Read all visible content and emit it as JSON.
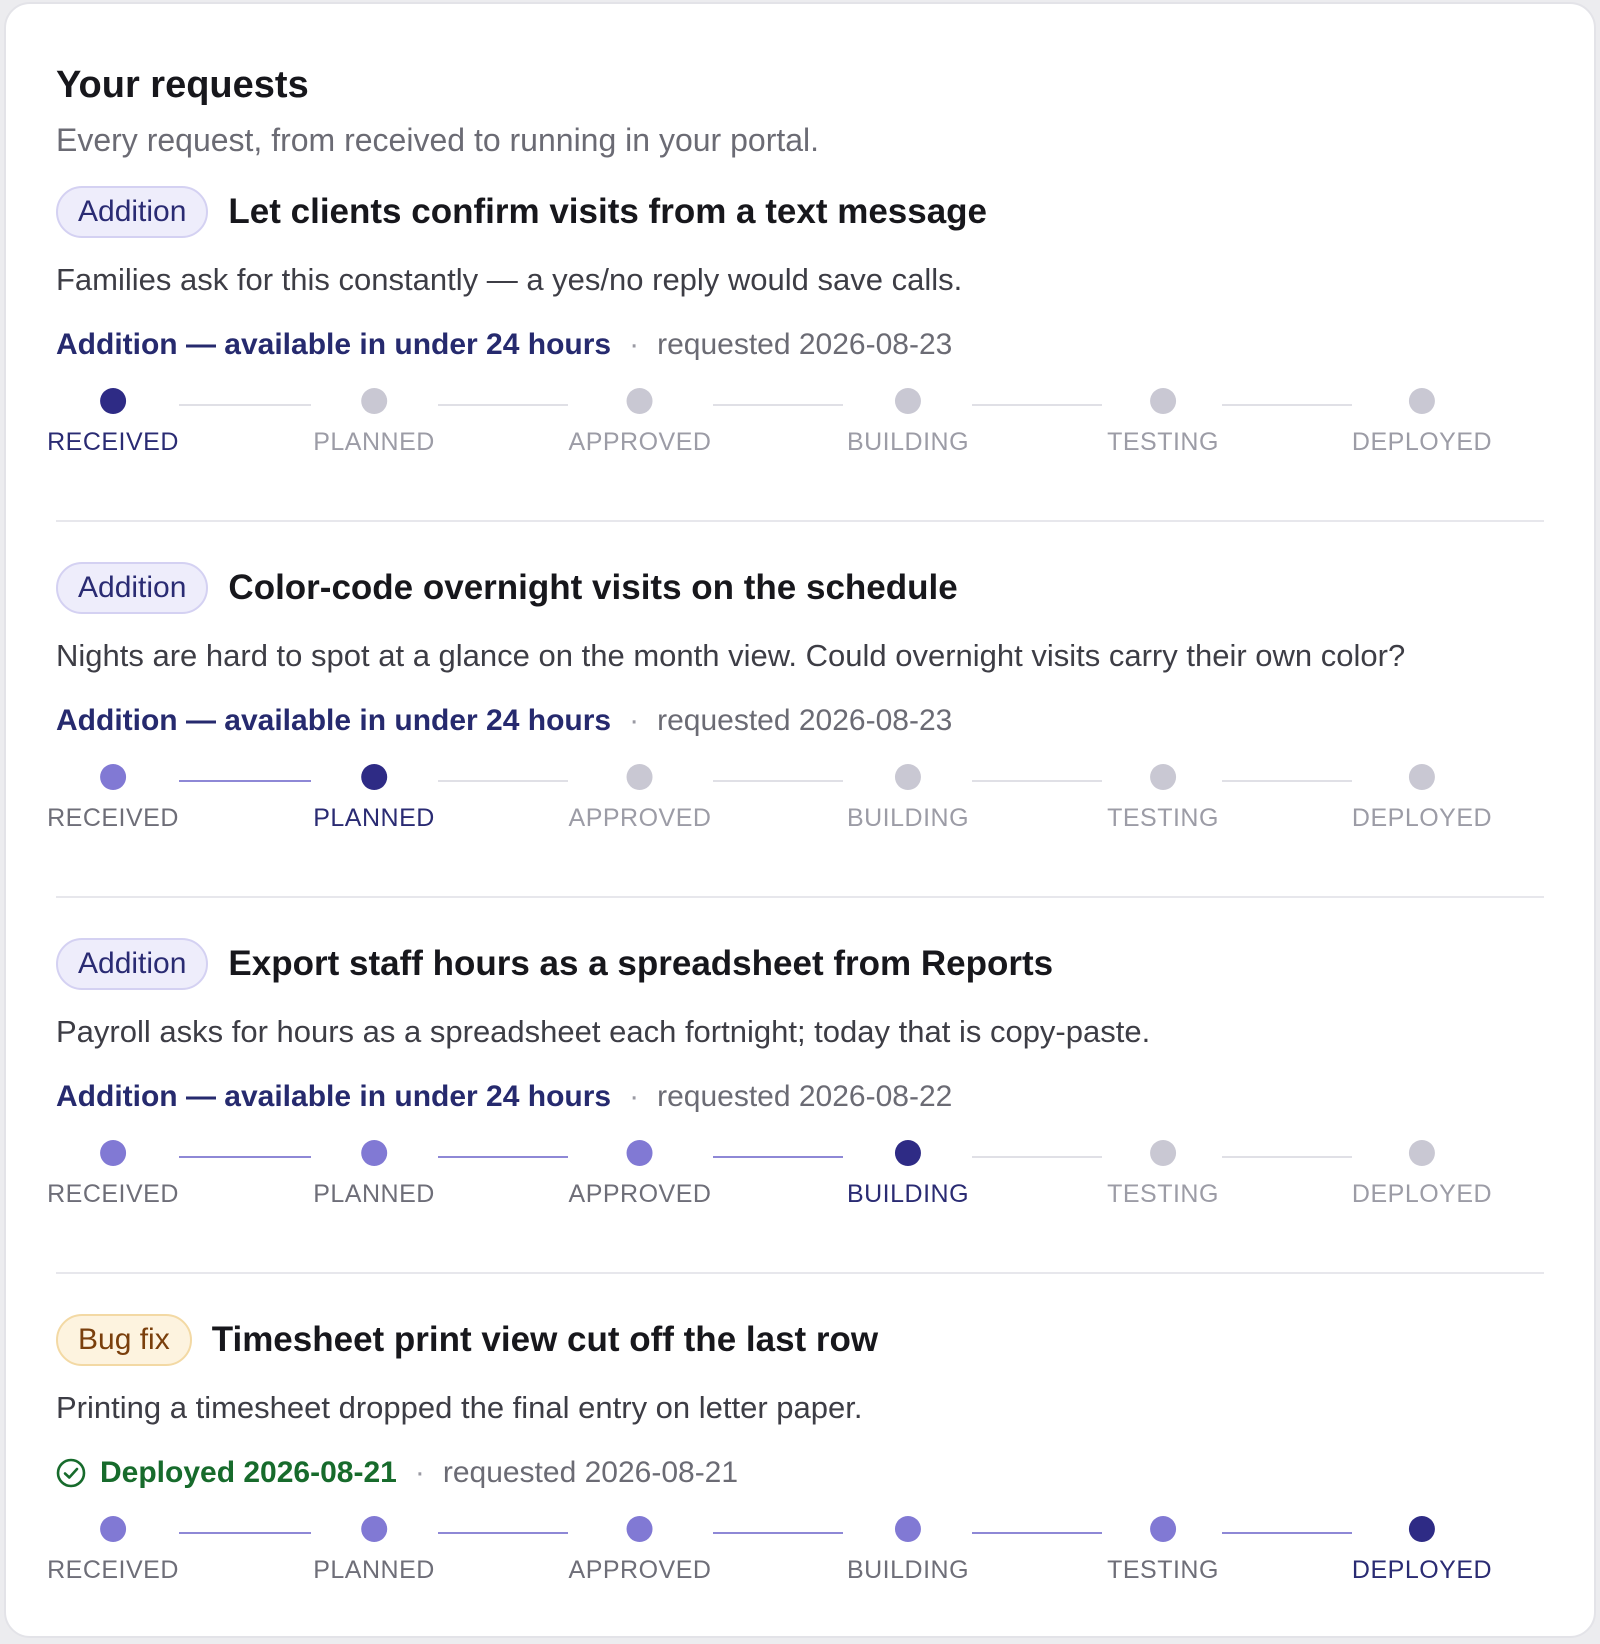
{
  "header": {
    "title": "Your requests",
    "subtitle": "Every request, from received to running in your portal."
  },
  "stages": [
    "RECEIVED",
    "PLANNED",
    "APPROVED",
    "BUILDING",
    "TESTING",
    "DEPLOYED"
  ],
  "requests": [
    {
      "tag": "Addition",
      "tag_kind": "addition",
      "title": "Let clients confirm visits from a text message",
      "description": "Families ask for this constantly — a yes/no reply would save calls.",
      "status": "Addition — available in under 24 hours",
      "status_kind": "pending",
      "separator": "·",
      "requested": "requested 2026-08-23",
      "current_stage": 0
    },
    {
      "tag": "Addition",
      "tag_kind": "addition",
      "title": "Color-code overnight visits on the schedule",
      "description": "Nights are hard to spot at a glance on the month view. Could overnight visits carry their own color?",
      "status": "Addition — available in under 24 hours",
      "status_kind": "pending",
      "separator": "·",
      "requested": "requested 2026-08-23",
      "current_stage": 1
    },
    {
      "tag": "Addition",
      "tag_kind": "addition",
      "title": "Export staff hours as a spreadsheet from Reports",
      "description": "Payroll asks for hours as a spreadsheet each fortnight; today that is copy-paste.",
      "status": "Addition — available in under 24 hours",
      "status_kind": "pending",
      "separator": "·",
      "requested": "requested 2026-08-22",
      "current_stage": 3
    },
    {
      "tag": "Bug fix",
      "tag_kind": "bug",
      "title": "Timesheet print view cut off the last row",
      "description": "Printing a timesheet dropped the final entry on letter paper.",
      "status": "Deployed 2026-08-21",
      "status_kind": "deployed",
      "status_icon": "check-circle-icon",
      "separator": "·",
      "requested": "requested 2026-08-21",
      "current_stage": 5
    }
  ],
  "colors": {
    "accent_current": "#2e2b85",
    "accent_done": "#8179d4",
    "pending": "#c9c8d3",
    "deployed_green": "#176b2c"
  }
}
